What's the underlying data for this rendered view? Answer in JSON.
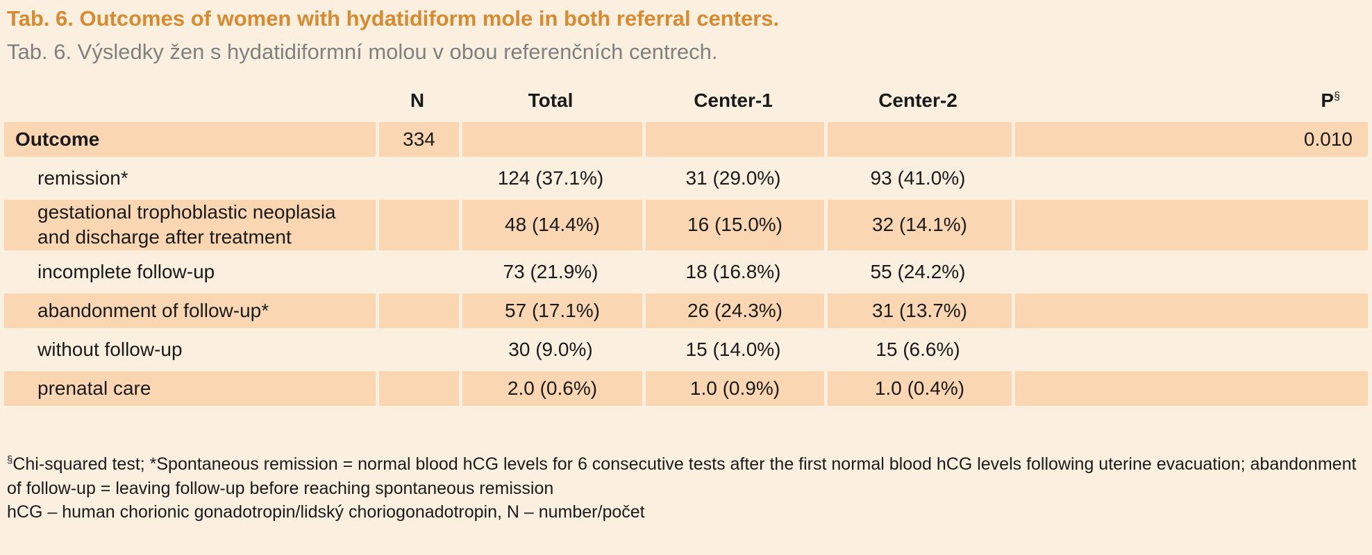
{
  "title": {
    "english": "Tab. 6. Outcomes of women with hydatidiform mole in both referral centers.",
    "czech": "Tab. 6. Výsledky žen s hydatidiformní molou v obou referenčních centrech."
  },
  "colors": {
    "title_orange": "#d98a2e",
    "row_shade": "#fad7b2",
    "background": "#fbf0e0",
    "subtitle_grey": "#808080"
  },
  "table": {
    "headers": {
      "label": "",
      "n": "N",
      "total": "Total",
      "center1": "Center-1",
      "center2": "Center-2",
      "p": "P",
      "p_sup": "§"
    },
    "outcome": {
      "label": "Outcome",
      "n": "334",
      "p": "0.010"
    },
    "rows": [
      {
        "label": "remission*",
        "total": "124 (37.1%)",
        "center1": "31 (29.0%)",
        "center2": "93 (41.0%)"
      },
      {
        "label": "gestational trophoblastic neoplasia and discharge after treatment",
        "total": "48 (14.4%)",
        "center1": "16 (15.0%)",
        "center2": "32 (14.1%)"
      },
      {
        "label": "incomplete follow-up",
        "total": "73 (21.9%)",
        "center1": "18 (16.8%)",
        "center2": "55 (24.2%)"
      },
      {
        "label": "abandonment of follow-up*",
        "total": "57 (17.1%)",
        "center1": "26 (24.3%)",
        "center2": "31 (13.7%)"
      },
      {
        "label": "without follow-up",
        "total": "30 (9.0%)",
        "center1": "15 (14.0%)",
        "center2": "15 (6.6%)"
      },
      {
        "label": "prenatal care",
        "total": "2.0 (0.6%)",
        "center1": "1.0 (0.9%)",
        "center2": "1.0 (0.4%)"
      }
    ]
  },
  "footnotes": {
    "line1_sup": "§",
    "line1": "Chi-squared test; *Spontaneous remission = normal blood hCG levels for 6 consecutive tests after the first normal blood hCG levels following uterine evacuation; abandonment of follow-up = leaving follow-up before reaching spontaneous remission",
    "line2": "hCG – human chorionic gonadotropin/lidský choriogonadotropin, N – number/počet"
  }
}
